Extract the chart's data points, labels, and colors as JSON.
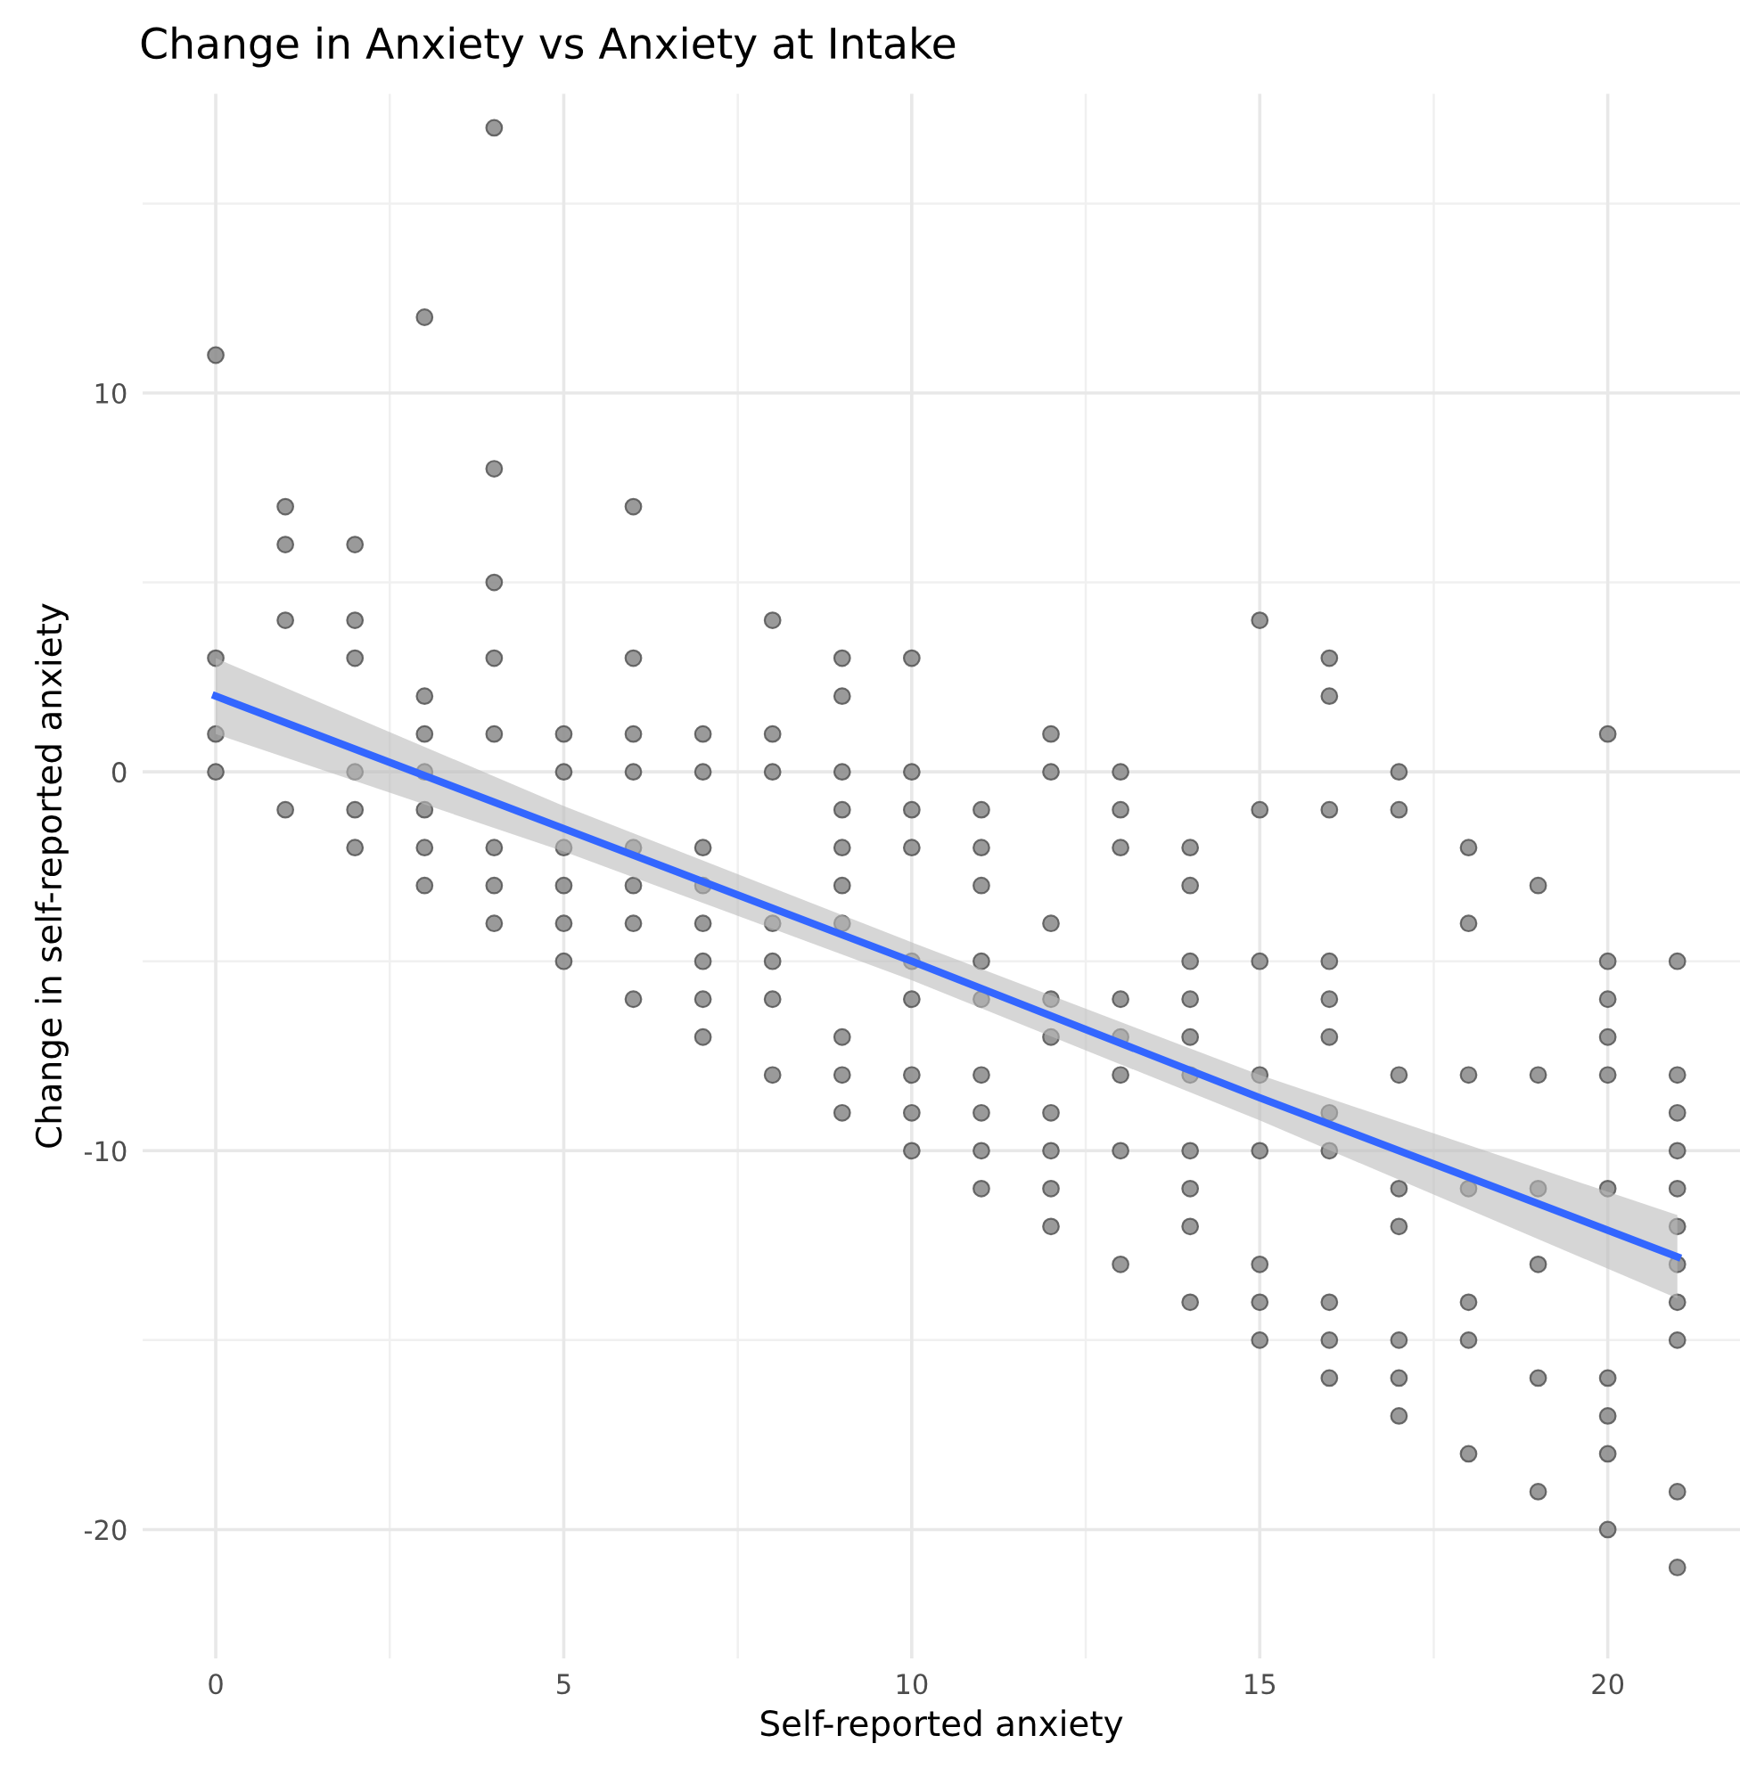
{
  "chart_data": {
    "type": "scatter",
    "title": "Change in Anxiety vs Anxiety at Intake",
    "xlabel": "Self-reported anxiety",
    "ylabel": "Change in self-reported anxiety",
    "xlim": [
      -1.05,
      21.9
    ],
    "ylim": [
      -23.4,
      17.9
    ],
    "xticks": [
      0,
      5,
      10,
      15,
      20
    ],
    "yticks": [
      -20,
      -10,
      0,
      10
    ],
    "grid": true,
    "series": [
      {
        "marker": "circle",
        "color": "#888888",
        "x": [
          0,
          0,
          0,
          0,
          1,
          1,
          1,
          1,
          2,
          2,
          2,
          2,
          2,
          2,
          3,
          3,
          3,
          3,
          3,
          3,
          3,
          4,
          4,
          4,
          4,
          4,
          4,
          4,
          4,
          5,
          5,
          5,
          5,
          5,
          5,
          6,
          6,
          6,
          6,
          6,
          6,
          6,
          6,
          7,
          7,
          7,
          7,
          7,
          7,
          7,
          7,
          8,
          8,
          8,
          8,
          8,
          8,
          8,
          9,
          9,
          9,
          9,
          9,
          9,
          9,
          9,
          9,
          9,
          10,
          10,
          10,
          10,
          10,
          10,
          10,
          10,
          10,
          11,
          11,
          11,
          11,
          11,
          11,
          11,
          11,
          11,
          12,
          12,
          12,
          12,
          12,
          12,
          12,
          12,
          12,
          13,
          13,
          13,
          13,
          13,
          13,
          13,
          13,
          14,
          14,
          14,
          14,
          14,
          14,
          14,
          14,
          14,
          14,
          15,
          15,
          15,
          15,
          15,
          15,
          15,
          15,
          16,
          16,
          16,
          16,
          16,
          16,
          16,
          16,
          16,
          16,
          16,
          17,
          17,
          17,
          17,
          17,
          17,
          17,
          17,
          18,
          18,
          18,
          18,
          18,
          18,
          18,
          19,
          19,
          19,
          19,
          19,
          19,
          20,
          20,
          20,
          20,
          20,
          20,
          20,
          20,
          20,
          20,
          21,
          21,
          21,
          21,
          21,
          21,
          21,
          21,
          21,
          21,
          21
        ],
        "values": [
          11,
          3,
          1,
          0,
          7,
          6,
          4,
          -1,
          6,
          4,
          3,
          0,
          -1,
          -2,
          12,
          2,
          1,
          0,
          -1,
          -2,
          -3,
          17,
          8,
          5,
          3,
          1,
          -2,
          -3,
          -4,
          1,
          0,
          -2,
          -3,
          -4,
          -5,
          7,
          3,
          1,
          0,
          -2,
          -3,
          -4,
          -6,
          1,
          0,
          -2,
          -3,
          -4,
          -5,
          -6,
          -7,
          4,
          1,
          0,
          -4,
          -5,
          -6,
          -8,
          3,
          2,
          0,
          -1,
          -2,
          -3,
          -4,
          -7,
          -8,
          -9,
          3,
          0,
          -1,
          -2,
          -5,
          -6,
          -8,
          -9,
          -10,
          -1,
          -2,
          -3,
          -5,
          -6,
          -8,
          -9,
          -10,
          -11,
          1,
          0,
          -4,
          -6,
          -7,
          -9,
          -10,
          -11,
          -12,
          0,
          -1,
          -2,
          -6,
          -7,
          -8,
          -10,
          -13,
          -2,
          -3,
          -5,
          -6,
          -7,
          -8,
          -10,
          -11,
          -12,
          -14,
          4,
          -1,
          -5,
          -8,
          -10,
          -13,
          -14,
          -15,
          3,
          2,
          -1,
          -5,
          -6,
          -7,
          -9,
          -10,
          -14,
          -15,
          -16,
          0,
          -1,
          -8,
          -11,
          -12,
          -15,
          -16,
          -17,
          -2,
          -4,
          -8,
          -11,
          -14,
          -15,
          -18,
          -3,
          -8,
          -11,
          -13,
          -16,
          -19,
          1,
          -5,
          -6,
          -7,
          -8,
          -11,
          -16,
          -17,
          -18,
          -20,
          -5,
          -8,
          -9,
          -10,
          -11,
          -12,
          -13,
          -14,
          -15,
          -19,
          -21
        ]
      },
      {
        "type": "line",
        "color": "#3366ff",
        "x": [
          0,
          5,
          10,
          15,
          21
        ],
        "values": [
          2.0,
          -1.5,
          -5.0,
          -8.6,
          -12.8
        ],
        "lower": [
          1.0,
          -2.1,
          -5.5,
          -9.2,
          -13.9
        ],
        "upper": [
          3.0,
          -0.9,
          -4.5,
          -8.0,
          -11.7
        ]
      }
    ]
  }
}
